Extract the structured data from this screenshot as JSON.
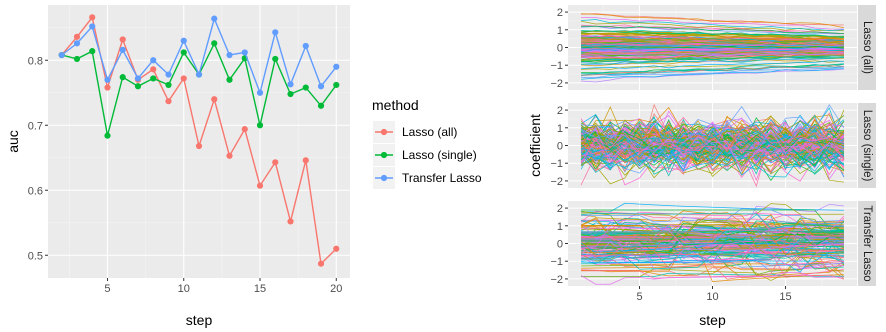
{
  "chart_data": [
    {
      "type": "line",
      "xlabel": "step",
      "ylabel": "auc",
      "xlim": [
        1.1,
        20.9
      ],
      "ylim": [
        0.465,
        0.885
      ],
      "xticks": [
        5,
        10,
        15,
        20
      ],
      "yticks": [
        0.5,
        0.6,
        0.7,
        0.8
      ],
      "grid": true,
      "legend": {
        "title": "method",
        "position": "right"
      },
      "x": [
        2,
        3,
        4,
        5,
        6,
        7,
        8,
        9,
        10,
        11,
        12,
        13,
        14,
        15,
        16,
        17,
        18,
        19,
        20
      ],
      "series": [
        {
          "name": "Lasso (all)",
          "color": "#F8766D",
          "values": [
            0.808,
            0.836,
            0.866,
            0.758,
            0.832,
            0.77,
            0.786,
            0.737,
            0.772,
            0.668,
            0.74,
            0.653,
            0.694,
            0.607,
            0.643,
            0.552,
            0.646,
            0.487,
            0.51
          ]
        },
        {
          "name": "Lasso (single)",
          "color": "#00BA38",
          "values": [
            0.808,
            0.802,
            0.814,
            0.684,
            0.774,
            0.76,
            0.772,
            0.762,
            0.812,
            0.778,
            0.826,
            0.77,
            0.803,
            0.7,
            0.802,
            0.748,
            0.758,
            0.73,
            0.762
          ]
        },
        {
          "name": "Transfer Lasso",
          "color": "#619CFF",
          "values": [
            0.808,
            0.826,
            0.852,
            0.77,
            0.816,
            0.772,
            0.8,
            0.778,
            0.83,
            0.778,
            0.864,
            0.808,
            0.812,
            0.75,
            0.843,
            0.763,
            0.822,
            0.76,
            0.79
          ]
        }
      ]
    },
    {
      "type": "line",
      "xlabel": "step",
      "ylabel": "coefficient",
      "xlim": [
        0.1,
        19.9
      ],
      "ylim": [
        -2.4,
        2.4
      ],
      "xticks": [
        5,
        10,
        15
      ],
      "yticks": [
        -2,
        -1,
        0,
        1,
        2
      ],
      "grid": true,
      "panels": [
        "Lasso (all)",
        "Lasso (single)",
        "Transfer Lasso"
      ],
      "steps": [
        1,
        2,
        3,
        4,
        5,
        6,
        7,
        8,
        9,
        10,
        11,
        12,
        13,
        14,
        15,
        16,
        17,
        18,
        19
      ],
      "coefficient_lines": 150,
      "palette": [
        "#F8766D",
        "#E58700",
        "#C99800",
        "#A3A500",
        "#6BB100",
        "#00BA38",
        "#00BF7D",
        "#00C0AF",
        "#00BCD8",
        "#00B0F6",
        "#619CFF",
        "#B983FF",
        "#E76BF3",
        "#FD61D1",
        "#FF67A4"
      ]
    }
  ]
}
